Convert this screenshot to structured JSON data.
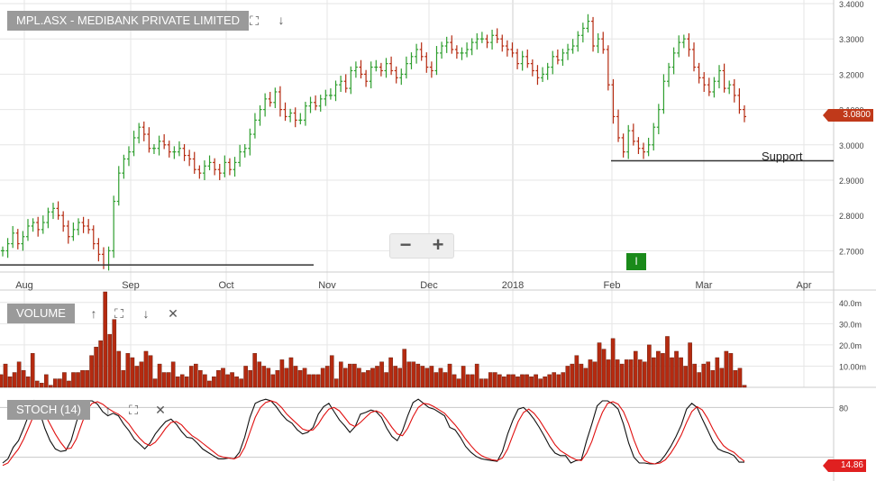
{
  "header": {
    "title": "MPL.ASX - MEDIBANK PRIVATE LIMITED",
    "expand_icon": "expand-icon",
    "down_icon": "arrow-down-icon"
  },
  "zoom": {
    "minus_label": "−",
    "plus_label": "+"
  },
  "marker_label": "I",
  "support_label": "Support",
  "volume_panel": {
    "title": "VOLUME"
  },
  "stoch_panel": {
    "title": "STOCH (14)"
  },
  "colors": {
    "up": "#2e9e2e",
    "down": "#b52a10",
    "volume": "#b52a10",
    "grid": "#e6e6e6",
    "stoch_k": "#111111",
    "stoch_d": "#e01010",
    "support": "#333333"
  },
  "chart_data": [
    {
      "type": "ohlc",
      "symbol": "MPL.ASX",
      "x_ticks": [
        "Aug",
        "Sep",
        "Oct",
        "Nov",
        "Dec",
        "2018",
        "Feb",
        "Mar",
        "Apr"
      ],
      "y_ticks": [
        "3.4000",
        "3.3000",
        "3.2000",
        "3.1000",
        "3.0000",
        "2.9000",
        "2.8000",
        "2.7000"
      ],
      "ylim": [
        2.64,
        3.4
      ],
      "last_price": "3.0800",
      "close_series": [
        2.7,
        2.72,
        2.75,
        2.72,
        2.74,
        2.77,
        2.78,
        2.76,
        2.78,
        2.81,
        2.82,
        2.8,
        2.77,
        2.74,
        2.76,
        2.78,
        2.77,
        2.76,
        2.72,
        2.69,
        2.66,
        2.7,
        2.84,
        2.92,
        2.96,
        2.98,
        3.02,
        3.05,
        3.03,
        2.99,
        2.99,
        3.01,
        3.0,
        2.98,
        2.98,
        2.99,
        2.97,
        2.96,
        2.93,
        2.92,
        2.94,
        2.95,
        2.93,
        2.92,
        2.95,
        2.93,
        2.95,
        2.98,
        2.99,
        3.03,
        3.07,
        3.1,
        3.13,
        3.12,
        3.15,
        3.1,
        3.08,
        3.09,
        3.07,
        3.07,
        3.11,
        3.12,
        3.11,
        3.13,
        3.14,
        3.14,
        3.17,
        3.18,
        3.16,
        3.21,
        3.22,
        3.2,
        3.18,
        3.22,
        3.22,
        3.21,
        3.23,
        3.21,
        3.19,
        3.2,
        3.23,
        3.25,
        3.27,
        3.25,
        3.22,
        3.21,
        3.26,
        3.28,
        3.29,
        3.27,
        3.26,
        3.26,
        3.27,
        3.29,
        3.3,
        3.3,
        3.29,
        3.31,
        3.3,
        3.28,
        3.27,
        3.26,
        3.23,
        3.25,
        3.23,
        3.21,
        3.19,
        3.2,
        3.22,
        3.25,
        3.24,
        3.26,
        3.27,
        3.28,
        3.31,
        3.33,
        3.35,
        3.28,
        3.3,
        3.27,
        3.17,
        3.08,
        3.02,
        2.98,
        3.04,
        3.01,
        2.99,
        2.98,
        3.0,
        3.05,
        3.1,
        3.18,
        3.22,
        3.26,
        3.29,
        3.3,
        3.27,
        3.22,
        3.19,
        3.17,
        3.15,
        3.18,
        3.21,
        3.16,
        3.17,
        3.14,
        3.1,
        3.08
      ],
      "support_levels": [
        {
          "price": 2.955,
          "label": "Support",
          "range": "Feb–Apr"
        },
        {
          "price": 2.66,
          "label": "",
          "range": "Aug–Nov"
        }
      ]
    },
    {
      "type": "bar",
      "name": "Volume",
      "y_ticks": [
        "40.0m",
        "30.0m",
        "20.0m",
        "10.00m"
      ],
      "ylim": [
        0,
        45
      ],
      "values": [
        6,
        11,
        5,
        7,
        12,
        8,
        5,
        16,
        3,
        2,
        6,
        1,
        4,
        4,
        7,
        3,
        7,
        7,
        8,
        8,
        15,
        19,
        22,
        45,
        25,
        32,
        17,
        8,
        16,
        14,
        10,
        12,
        17,
        15,
        4,
        11,
        7,
        7,
        12,
        5,
        6,
        5,
        10,
        11,
        8,
        6,
        3,
        5,
        8,
        9,
        6,
        7,
        5,
        4,
        10,
        8,
        16,
        12,
        10,
        9,
        6,
        8,
        13,
        9,
        14,
        10,
        8,
        9,
        6,
        6,
        6,
        9,
        10,
        15,
        4,
        12,
        9,
        11,
        11,
        9,
        7,
        8,
        9,
        10,
        12,
        7,
        14,
        10,
        9,
        18,
        12,
        12,
        11,
        10,
        9,
        10,
        7,
        9,
        7,
        11,
        6,
        4,
        10,
        6,
        6,
        11,
        4,
        4,
        7,
        7,
        6,
        5,
        6,
        6,
        5,
        6,
        6,
        5,
        6,
        4,
        5,
        6,
        7,
        6,
        7,
        10,
        11,
        15,
        11,
        9,
        13,
        12,
        21,
        18,
        13,
        23,
        13,
        11,
        13,
        13,
        17,
        13,
        12,
        20,
        14,
        17,
        16,
        24,
        14,
        17,
        14,
        10,
        21,
        11,
        7,
        11,
        12,
        8,
        14,
        9,
        17,
        16,
        8,
        9,
        1
      ],
      "last_value": 1
    },
    {
      "type": "line",
      "name": "STOCH (14)",
      "y_ticks": [
        "80"
      ],
      "ylim": [
        0,
        100
      ],
      "last_value": "14.86",
      "series": [
        {
          "name": "%K",
          "values": [
            13,
            18,
            32,
            40,
            55,
            72,
            88,
            75,
            55,
            40,
            30,
            27,
            28,
            40,
            62,
            82,
            88,
            88,
            84,
            75,
            70,
            73,
            70,
            60,
            52,
            42,
            36,
            30,
            37,
            48,
            56,
            63,
            66,
            60,
            51,
            44,
            43,
            37,
            30,
            26,
            22,
            18,
            18,
            19,
            18,
            26,
            44,
            68,
            85,
            88,
            90,
            88,
            81,
            72,
            65,
            61,
            53,
            48,
            50,
            56,
            72,
            81,
            85,
            75,
            65,
            58,
            50,
            57,
            72,
            74,
            77,
            75,
            68,
            55,
            45,
            40,
            52,
            70,
            86,
            90,
            85,
            80,
            78,
            74,
            70,
            56,
            53,
            44,
            33,
            26,
            21,
            18,
            17,
            16,
            15,
            27,
            48,
            65,
            78,
            80,
            74,
            66,
            56,
            45,
            33,
            25,
            22,
            22,
            13,
            16,
            17,
            40,
            60,
            82,
            88,
            88,
            84,
            78,
            60,
            37,
            20,
            13,
            13,
            12,
            12,
            15,
            23,
            33,
            45,
            59,
            78,
            85,
            80,
            66,
            53,
            39,
            30,
            27,
            25,
            22,
            14,
            14
          ]
        },
        {
          "name": "%D",
          "values": [
            10,
            13,
            22,
            30,
            42,
            57,
            72,
            78,
            72,
            60,
            48,
            38,
            30,
            31,
            42,
            60,
            77,
            85,
            87,
            84,
            79,
            75,
            72,
            67,
            60,
            51,
            43,
            37,
            34,
            38,
            46,
            55,
            62,
            63,
            59,
            52,
            46,
            42,
            37,
            32,
            27,
            22,
            20,
            19,
            18,
            21,
            32,
            50,
            68,
            80,
            86,
            88,
            86,
            80,
            72,
            66,
            60,
            54,
            52,
            53,
            60,
            70,
            78,
            80,
            76,
            68,
            60,
            57,
            62,
            68,
            74,
            76,
            73,
            65,
            56,
            48,
            46,
            55,
            69,
            80,
            85,
            84,
            81,
            77,
            73,
            66,
            59,
            51,
            42,
            34,
            27,
            22,
            19,
            17,
            16,
            19,
            30,
            47,
            63,
            74,
            78,
            73,
            65,
            55,
            45,
            35,
            28,
            24,
            20,
            17,
            16,
            25,
            39,
            58,
            74,
            85,
            87,
            84,
            75,
            60,
            41,
            25,
            16,
            13,
            12,
            13,
            17,
            25,
            35,
            47,
            62,
            75,
            81,
            77,
            67,
            54,
            43,
            34,
            29,
            26,
            20,
            15
          ]
        }
      ]
    }
  ]
}
